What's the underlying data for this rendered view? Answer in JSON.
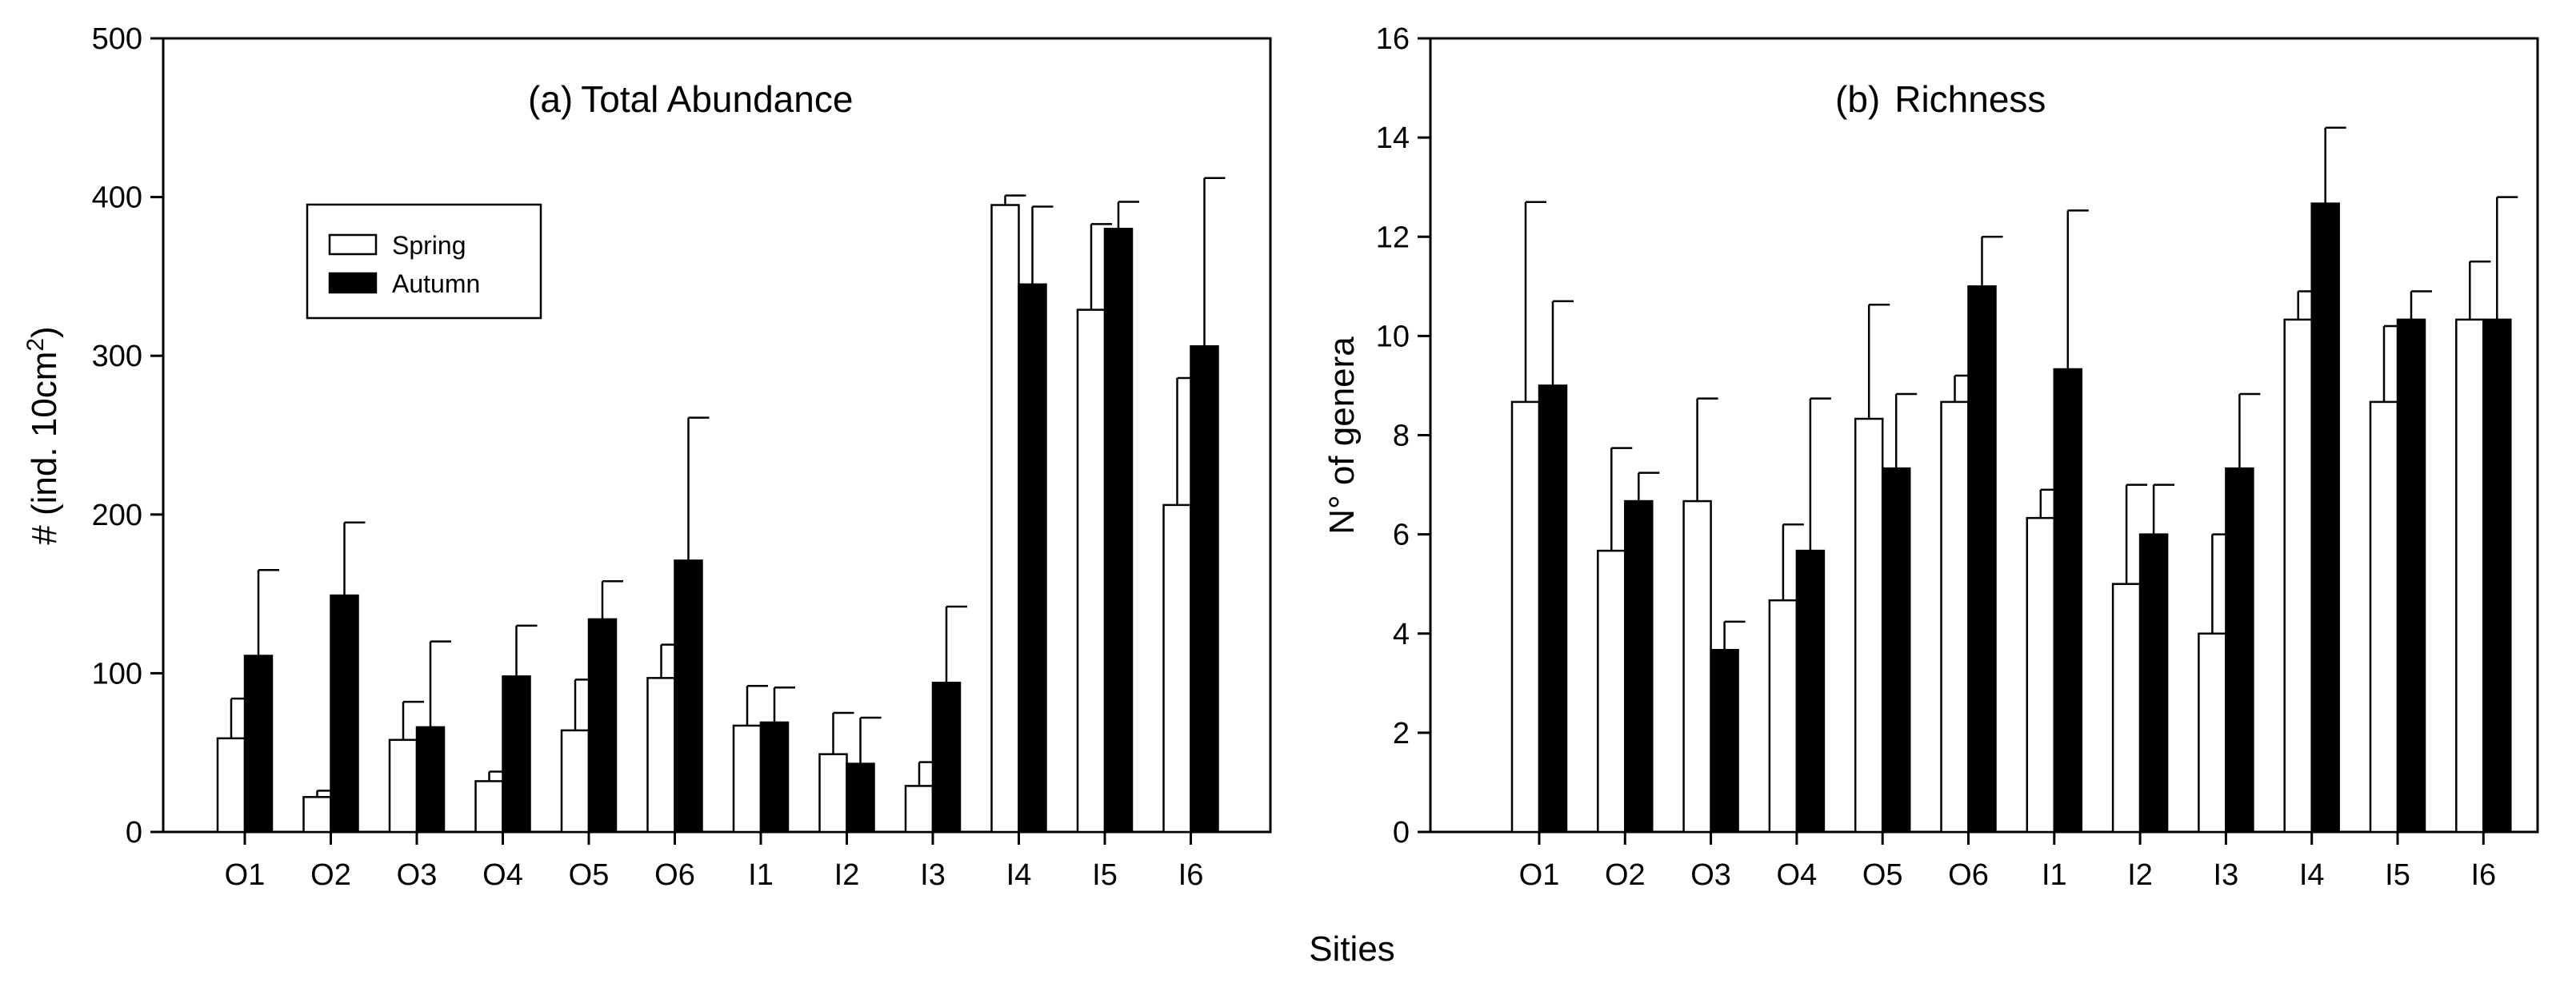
{
  "figure": {
    "xlabel": "Sities"
  },
  "legend": {
    "spring_label": "Spring",
    "autumn_label": "Autumn"
  },
  "colors": {
    "spring": "#ffffff",
    "autumn": "#000000",
    "outline": "#000000"
  },
  "chart_data": [
    {
      "type": "bar",
      "panel_label": "(a)",
      "title": "Total Abundance",
      "ylabel": "# (ind. 10cm",
      "ylabel_sup": "2",
      "ylabel_end": ")",
      "ylim": [
        0,
        500
      ],
      "yticks": [
        0,
        100,
        200,
        300,
        400,
        500
      ],
      "categories": [
        "O1",
        "O2",
        "O3",
        "O4",
        "O5",
        "O6",
        "I1",
        "I2",
        "I3",
        "I4",
        "I5",
        "I6"
      ],
      "series": [
        {
          "name": "Spring",
          "values": [
            59,
            22,
            58,
            32,
            64,
            97,
            67,
            49,
            29,
            395,
            329,
            206
          ],
          "errors": [
            25,
            4,
            24,
            6,
            32,
            21,
            25,
            26,
            15,
            6,
            54,
            80
          ]
        },
        {
          "name": "Autumn",
          "values": [
            111,
            149,
            66,
            98,
            134,
            171,
            69,
            43,
            94,
            345,
            380,
            306
          ],
          "errors": [
            54,
            46,
            54,
            32,
            24,
            90,
            22,
            29,
            48,
            49,
            17,
            106
          ]
        }
      ]
    },
    {
      "type": "bar",
      "panel_label": "(b)",
      "title": "Richness",
      "ylabel": "N° of genera",
      "ylim": [
        0,
        16
      ],
      "yticks": [
        0,
        2,
        4,
        6,
        8,
        10,
        12,
        14,
        16
      ],
      "categories": [
        "O1",
        "O2",
        "O3",
        "O4",
        "O5",
        "O6",
        "I1",
        "I2",
        "I3",
        "I4",
        "I5",
        "I6"
      ],
      "series": [
        {
          "name": "Spring",
          "values": [
            8.67,
            5.67,
            6.67,
            4.67,
            8.33,
            8.67,
            6.33,
            5.0,
            4.0,
            10.33,
            8.67,
            10.33
          ],
          "errors": [
            4.03,
            2.07,
            2.07,
            1.53,
            2.3,
            0.53,
            0.57,
            2.0,
            2.0,
            0.57,
            1.53,
            1.17
          ]
        },
        {
          "name": "Autumn",
          "values": [
            9.0,
            6.67,
            3.67,
            5.67,
            7.33,
            11.0,
            9.33,
            6.0,
            7.33,
            12.67,
            10.33,
            10.33
          ],
          "errors": [
            1.7,
            0.57,
            0.57,
            3.07,
            1.5,
            1.0,
            3.2,
            1.0,
            1.5,
            1.53,
            0.57,
            2.47
          ]
        }
      ]
    }
  ]
}
